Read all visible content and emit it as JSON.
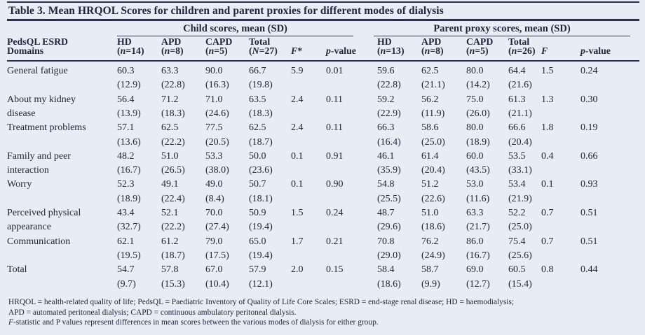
{
  "title": "Table 3. Mean HRQOL Scores for children and parent proxies for different modes of dialysis",
  "groups": {
    "child": "Child scores, mean (SD)",
    "parent": "Parent proxy scores, mean (SD)"
  },
  "stub": [
    "PedsQL ESRD",
    "Domains"
  ],
  "cols": [
    {
      "p1": "HD",
      "i1": "",
      "s1": "",
      "p2": "(",
      "i2": "n",
      "s2": "=14)"
    },
    {
      "p1": "APD",
      "i1": "",
      "s1": "",
      "p2": "(",
      "i2": "n",
      "s2": "=8)"
    },
    {
      "p1": "CAPD",
      "i1": "",
      "s1": "",
      "p2": "(",
      "i2": "n",
      "s2": "=5)"
    },
    {
      "p1": "Total",
      "i1": "",
      "s1": "",
      "p2": "(",
      "i2": "N",
      "s2": "=27)"
    },
    {
      "p1": "",
      "i1": "",
      "s1": "",
      "p2": "",
      "i2": "F",
      "s2": "*"
    },
    {
      "p1": "",
      "i1": "",
      "s1": "",
      "p2": "",
      "i2": "p",
      "s2": "-value"
    },
    {
      "p1": "HD",
      "i1": "",
      "s1": "",
      "p2": "(",
      "i2": "n",
      "s2": "=13)"
    },
    {
      "p1": "APD",
      "i1": "",
      "s1": "",
      "p2": "(",
      "i2": "n",
      "s2": "=8)"
    },
    {
      "p1": "CAPD",
      "i1": "",
      "s1": "",
      "p2": "(",
      "i2": "n",
      "s2": "=5)"
    },
    {
      "p1": "Total",
      "i1": "",
      "s1": "",
      "p2": "(",
      "i2": "n",
      "s2": "=26)"
    },
    {
      "p1": "",
      "i1": "",
      "s1": "",
      "p2": "",
      "i2": "F",
      "s2": ""
    },
    {
      "p1": "",
      "i1": "",
      "s1": "",
      "p2": "",
      "i2": "p",
      "s2": "-value"
    }
  ],
  "rows": [
    {
      "label": [
        "General fatigue",
        ""
      ],
      "c": [
        "60.3",
        "63.3",
        "90.0",
        "66.7"
      ],
      "csd": [
        "(12.9)",
        "(22.8)",
        "(16.3)",
        "(19.8)"
      ],
      "cf": "5.9",
      "cp": "0.01",
      "p": [
        "59.6",
        "62.5",
        "80.0",
        "64.4"
      ],
      "psd": [
        "(22.8)",
        "(21.1)",
        "(14.2)",
        "(21.6)"
      ],
      "pf": "1.5",
      "pp": "0.24"
    },
    {
      "label": [
        "About my kidney",
        "disease"
      ],
      "c": [
        "56.4",
        "71.2",
        "71.0",
        "63.5"
      ],
      "csd": [
        "(13.9)",
        "(18.3)",
        "(24.6)",
        "(18.3)"
      ],
      "cf": "2.4",
      "cp": "0.11",
      "p": [
        "59.2",
        "56.2",
        "75.0",
        "61.3"
      ],
      "psd": [
        "(22.9)",
        "(11.9)",
        "(26.0)",
        "(21.1)"
      ],
      "pf": "1.3",
      "pp": "0.30"
    },
    {
      "label": [
        "Treatment problems",
        ""
      ],
      "c": [
        "57.1",
        "62.5",
        "77.5",
        "62.5"
      ],
      "csd": [
        "(13.6)",
        "(22.2)",
        "(20.5)",
        "(18.7)"
      ],
      "cf": "2.4",
      "cp": "0.11",
      "p": [
        "66.3",
        "58.6",
        "80.0",
        "66.6"
      ],
      "psd": [
        "(16.4)",
        "(25.0)",
        "(18.9)",
        "(20.4)"
      ],
      "pf": "1.8",
      "pp": "0.19"
    },
    {
      "label": [
        "Family and peer",
        "interaction"
      ],
      "c": [
        "48.2",
        "51.0",
        "53.3",
        "50.0"
      ],
      "csd": [
        "(16.7)",
        "(26.5)",
        "(38.0)",
        "(23.6)"
      ],
      "cf": "0.1",
      "cp": "0.91",
      "p": [
        "46.1",
        "61.4",
        "60.0",
        "53.5"
      ],
      "psd": [
        "(35.9)",
        "(20.4)",
        "(43.5)",
        "(33.1)"
      ],
      "pf": "0.4",
      "pp": "0.66"
    },
    {
      "label": [
        "Worry",
        ""
      ],
      "c": [
        "52.3",
        "49.1",
        "49.0",
        "50.7"
      ],
      "csd": [
        "(18.9)",
        "(22.4)",
        "(8.4)",
        "(18.1)"
      ],
      "cf": "0.1",
      "cp": "0.90",
      "p": [
        "54.8",
        "51.2",
        "53.0",
        "53.4"
      ],
      "psd": [
        "(25.5)",
        "(22.6)",
        "(11.6)",
        "(21.9)"
      ],
      "pf": "0.1",
      "pp": "0.93"
    },
    {
      "label": [
        "Perceived physical",
        "appearance"
      ],
      "c": [
        "43.4",
        "52.1",
        "70.0",
        "50.9"
      ],
      "csd": [
        "(32.7)",
        "(22.2)",
        "(27.4)",
        "(19.4)"
      ],
      "cf": "1.5",
      "cp": "0.24",
      "p": [
        "48.7",
        "51.0",
        "63.3",
        "52.2"
      ],
      "psd": [
        "(29.6)",
        "(18.6)",
        "(21.7)",
        "(25.0)"
      ],
      "pf": "0.7",
      "pp": "0.51"
    },
    {
      "label": [
        "Communication",
        ""
      ],
      "c": [
        "62.1",
        "61.2",
        "79.0",
        "65.0"
      ],
      "csd": [
        "(19.5)",
        "(18.7)",
        "(17.5)",
        "(19.4)"
      ],
      "cf": "1.7",
      "cp": "0.21",
      "p": [
        "70.8",
        "76.2",
        "86.0",
        "75.4"
      ],
      "psd": [
        "(29.0)",
        "(24.9)",
        "(16.7)",
        "(25.6)"
      ],
      "pf": "0.7",
      "pp": "0.51"
    },
    {
      "label": [
        "Total",
        ""
      ],
      "c": [
        "54.7",
        "57.8",
        "67.0",
        "57.9"
      ],
      "csd": [
        "(9.7)",
        "(15.3)",
        "(10.4)",
        "(12.1)"
      ],
      "cf": "2.0",
      "cp": "0.15",
      "p": [
        "58.4",
        "58.7",
        "69.0",
        "60.5"
      ],
      "psd": [
        "(18.6)",
        "(9.9)",
        "(12.7)",
        "(15.4)"
      ],
      "pf": "0.8",
      "pp": "0.44"
    }
  ],
  "footnotes": {
    "line1": "HRQOL = health-related quality of life; PedsQL = Paediatric Inventory of Quality of Life Core Scales; ESRD = end-stage renal disease; HD = haemodialysis;",
    "line2": "APD = automated peritoneal dialysis; CAPD = continuous ambulatory peritoneal dialysis.",
    "line3_italic": "F",
    "line3_rest": "-statistic and P values represent differences in mean scores between the various modes of dialysis for either group."
  },
  "colors": {
    "background": "#e8ecf4",
    "ink": "#20263c",
    "rule": "#2a3050"
  }
}
